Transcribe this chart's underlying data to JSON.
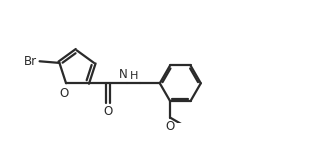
{
  "bg_color": "#ffffff",
  "line_color": "#2a2a2a",
  "text_color": "#2a2a2a",
  "line_width": 1.6,
  "font_size": 8.5,
  "fig_width": 3.32,
  "fig_height": 1.47,
  "dpi": 100,
  "xlim": [
    0,
    10
  ],
  "ylim": [
    0,
    3.0
  ]
}
